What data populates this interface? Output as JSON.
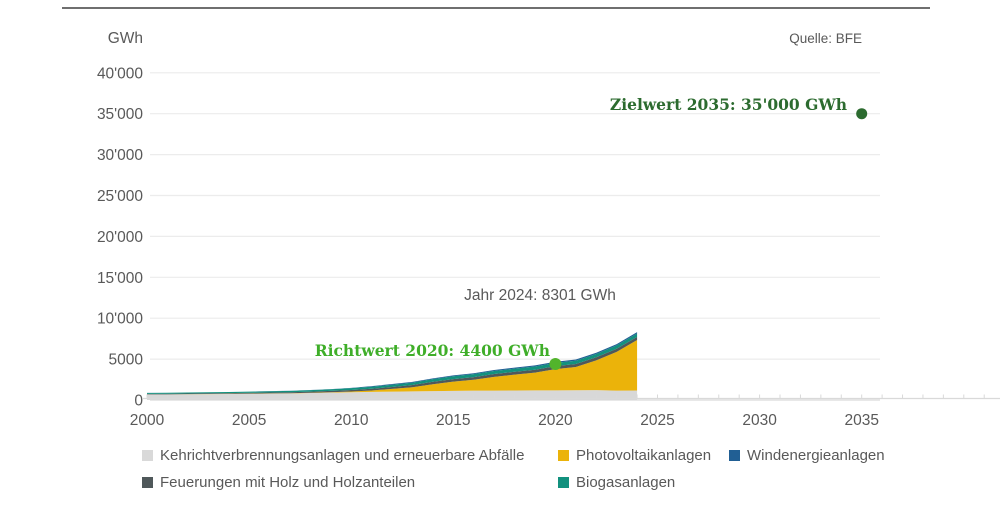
{
  "header": {
    "source_note": "Quelle: BFE"
  },
  "axis": {
    "unit_label": "GWh"
  },
  "annotations": {
    "current_year": "Jahr 2024: 8301 GWh",
    "richtwert_2020": "Richtwert 2020: 4400 GWh",
    "zielwert_2035": "Zielwert 2035: 35'000 GWh"
  },
  "legend": {
    "items": [
      {
        "label": "Kehrichtverbrennungsanlagen und erneuerbare Abfälle",
        "color": "#d9d9d9"
      },
      {
        "label": "Photovoltaikanlagen",
        "color": "#ebb30a"
      },
      {
        "label": "Windenergieanlagen",
        "color": "#215f94"
      },
      {
        "label": "Feuerungen mit Holz und Holzanteilen",
        "color": "#4f585a"
      },
      {
        "label": "Biogasanlagen",
        "color": "#12917e"
      }
    ]
  },
  "chart_data": {
    "type": "area",
    "stacked": true,
    "title": "",
    "xlabel": "",
    "ylabel": "GWh",
    "xlim": [
      2000,
      2035
    ],
    "ylim": [
      0,
      40000
    ],
    "grid": true,
    "x": [
      2000,
      2001,
      2002,
      2003,
      2004,
      2005,
      2006,
      2007,
      2008,
      2009,
      2010,
      2011,
      2012,
      2013,
      2014,
      2015,
      2016,
      2017,
      2018,
      2019,
      2020,
      2021,
      2022,
      2023,
      2024
    ],
    "series": [
      {
        "name": "Kehrichtverbrennungsanlagen und erneuerbare Abfälle",
        "color": "#d8d8d8",
        "values": [
          670,
          680,
          700,
          720,
          740,
          760,
          780,
          800,
          850,
          900,
          950,
          1000,
          1030,
          1060,
          1090,
          1120,
          1140,
          1150,
          1160,
          1170,
          1180,
          1190,
          1200,
          1150,
          1160
        ]
      },
      {
        "name": "Photovoltaikanlagen",
        "color": "#ebb30a",
        "values": [
          11,
          13,
          15,
          17,
          18,
          21,
          24,
          28,
          34,
          54,
          94,
          168,
          323,
          500,
          842,
          1119,
          1333,
          1683,
          1945,
          2178,
          2599,
          2842,
          3650,
          4740,
          6171
        ]
      },
      {
        "name": "Feuerungen mit Holz und Holzanteilen",
        "color": "#4f585a",
        "values": [
          70,
          75,
          80,
          85,
          90,
          100,
          110,
          125,
          140,
          160,
          185,
          210,
          240,
          270,
          295,
          320,
          330,
          340,
          350,
          355,
          360,
          365,
          370,
          375,
          380
        ]
      },
      {
        "name": "Biogasanlagen",
        "color": "#12917e",
        "values": [
          110,
          115,
          120,
          125,
          130,
          140,
          150,
          165,
          180,
          200,
          220,
          245,
          270,
          295,
          320,
          340,
          355,
          365,
          375,
          385,
          395,
          400,
          405,
          410,
          415
        ]
      },
      {
        "name": "Windenergieanlagen",
        "color": "#215f94",
        "values": [
          3,
          5,
          5,
          5,
          6,
          8,
          15,
          16,
          19,
          23,
          37,
          70,
          88,
          90,
          100,
          110,
          109,
          133,
          122,
          146,
          146,
          147,
          155,
          160,
          175
        ]
      }
    ],
    "total_2024": 8301,
    "targets": [
      {
        "name": "Richtwert 2020",
        "year": 2020,
        "value": 4400,
        "color": "#52b42c",
        "radius": 6
      },
      {
        "name": "Zielwert 2035",
        "year": 2035,
        "value": 35000,
        "color": "#2c6b2f",
        "radius": 5.5
      }
    ],
    "yticks": [
      {
        "value": 40000,
        "label": "40'000"
      },
      {
        "value": 35000,
        "label": "35'000"
      },
      {
        "value": 30000,
        "label": "30'000"
      },
      {
        "value": 25000,
        "label": "25'000"
      },
      {
        "value": 20000,
        "label": "20'000"
      },
      {
        "value": 15000,
        "label": "15'000"
      },
      {
        "value": 10000,
        "label": "10'000"
      },
      {
        "value": 5000,
        "label": "5000"
      },
      {
        "value": 0,
        "label": "0"
      }
    ],
    "xticks": [
      {
        "value": 2000,
        "label": "2000"
      },
      {
        "value": 2005,
        "label": "2005"
      },
      {
        "value": 2010,
        "label": "2010"
      },
      {
        "value": 2015,
        "label": "2015"
      },
      {
        "value": 2020,
        "label": "2020"
      },
      {
        "value": 2025,
        "label": "2025"
      },
      {
        "value": 2030,
        "label": "2030"
      },
      {
        "value": 2035,
        "label": "2035"
      }
    ],
    "legend_position": "bottom"
  },
  "colors": {
    "text": "#595959",
    "gridline": "#ececec",
    "axis": "#d9d9d9",
    "top_rule": "#6f6f6f"
  }
}
